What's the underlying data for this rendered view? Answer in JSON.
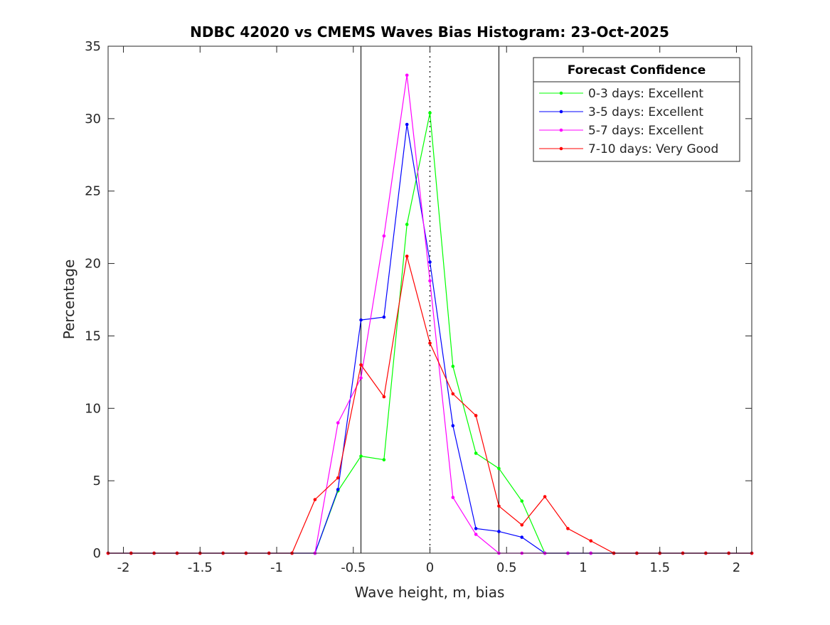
{
  "chart_data": {
    "type": "line",
    "title": "NDBC 42020 vs CMEMS Waves Bias Histogram: 23-Oct-2025",
    "xlabel": "Wave height, m, bias",
    "ylabel": "Percentage",
    "xlim": [
      -2.1,
      2.1
    ],
    "ylim": [
      0,
      35
    ],
    "xticks": [
      -2,
      -1.5,
      -1,
      -0.5,
      0,
      0.5,
      1,
      1.5,
      2
    ],
    "xtick_labels": [
      "-2",
      "-1.5",
      "-1",
      "-0.5",
      "0",
      "0.5",
      "1",
      "1.5",
      "2"
    ],
    "yticks": [
      0,
      5,
      10,
      15,
      20,
      25,
      30,
      35
    ],
    "ytick_labels": [
      "0",
      "5",
      "10",
      "15",
      "20",
      "25",
      "30",
      "35"
    ],
    "grid": false,
    "reference_lines": {
      "solid": [
        -0.45,
        0.45
      ],
      "dotted": [
        0
      ]
    },
    "legend": {
      "title": "Forecast Confidence",
      "placement": "top-right"
    },
    "x": [
      -2.1,
      -1.95,
      -1.8,
      -1.65,
      -1.5,
      -1.35,
      -1.2,
      -1.05,
      -0.9,
      -0.75,
      -0.6,
      -0.45,
      -0.3,
      -0.15,
      0,
      0.15,
      0.3,
      0.45,
      0.6,
      0.75,
      0.9,
      1.05,
      1.2,
      1.35,
      1.5,
      1.65,
      1.8,
      1.95,
      2.1
    ],
    "series": [
      {
        "name": "0-3 days: Excellent",
        "color": "#00ff00",
        "values": [
          0,
          0,
          0,
          0,
          0,
          0,
          0,
          0,
          0,
          0,
          4.3,
          6.7,
          6.45,
          22.7,
          30.4,
          12.9,
          6.9,
          5.85,
          3.6,
          0,
          0,
          0,
          0,
          0,
          0,
          0,
          0,
          0,
          0
        ]
      },
      {
        "name": "3-5 days: Excellent",
        "color": "#0000ff",
        "values": [
          0,
          0,
          0,
          0,
          0,
          0,
          0,
          0,
          0,
          0,
          4.4,
          16.1,
          16.3,
          29.6,
          20.1,
          8.8,
          1.7,
          1.5,
          1.1,
          0,
          0,
          0,
          0,
          0,
          0,
          0,
          0,
          0,
          0
        ]
      },
      {
        "name": "5-7 days: Excellent",
        "color": "#ff00ff",
        "values": [
          0,
          0,
          0,
          0,
          0,
          0,
          0,
          0,
          0,
          0,
          9.0,
          12.1,
          21.9,
          33.0,
          18.8,
          3.85,
          1.3,
          0,
          0,
          0,
          0,
          0,
          0,
          0,
          0,
          0,
          0,
          0,
          0
        ]
      },
      {
        "name": "7-10 days: Very Good",
        "color": "#ff0000",
        "values": [
          0,
          0,
          0,
          0,
          0,
          0,
          0,
          0,
          0,
          3.7,
          5.2,
          13.0,
          10.8,
          20.5,
          14.5,
          11.0,
          9.5,
          3.25,
          1.95,
          3.9,
          1.7,
          0.85,
          0,
          0,
          0,
          0,
          0,
          0,
          0
        ]
      }
    ]
  }
}
